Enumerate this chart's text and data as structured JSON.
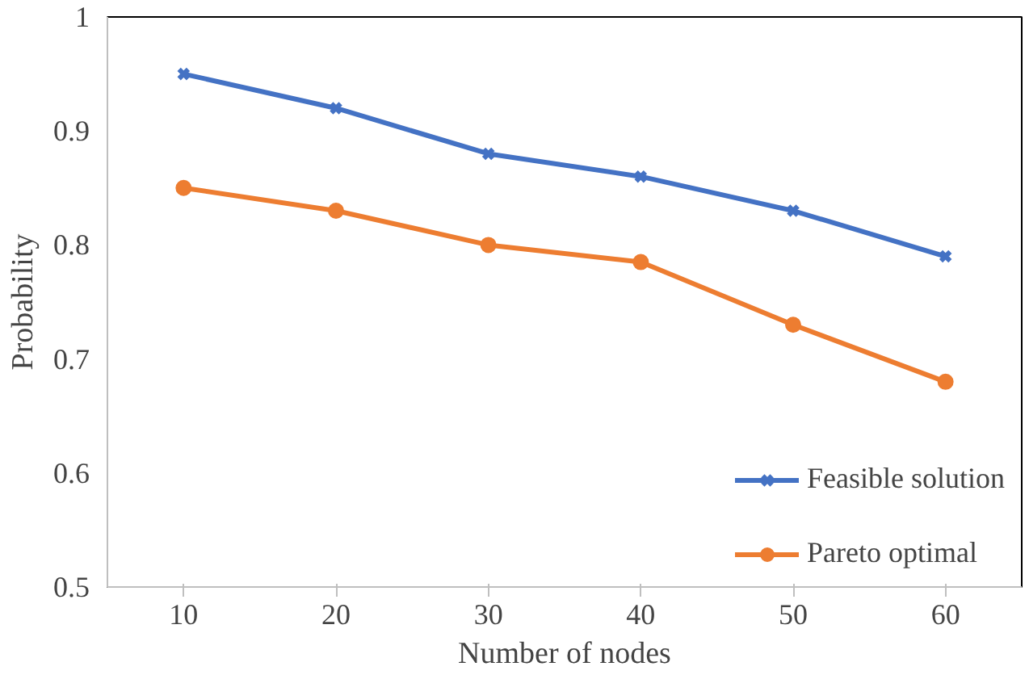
{
  "chart_data": {
    "type": "line",
    "xlabel": "Number of nodes",
    "ylabel": "Probability",
    "categories": [
      "10",
      "20",
      "30",
      "40",
      "50",
      "60"
    ],
    "series": [
      {
        "name": "Feasible solution",
        "color": "#4472c4",
        "marker": "cross",
        "values": [
          0.95,
          0.92,
          0.88,
          0.86,
          0.83,
          0.79
        ]
      },
      {
        "name": "Pareto optimal",
        "color": "#ed7d31",
        "marker": "circle",
        "values": [
          0.85,
          0.83,
          0.8,
          0.785,
          0.73,
          0.68
        ]
      }
    ],
    "ylim": [
      0.5,
      1
    ],
    "yticks": [
      0.5,
      0.6,
      0.7,
      0.8,
      0.9,
      1
    ],
    "grid": false,
    "legend": "bottom right",
    "line_style": "solid"
  }
}
